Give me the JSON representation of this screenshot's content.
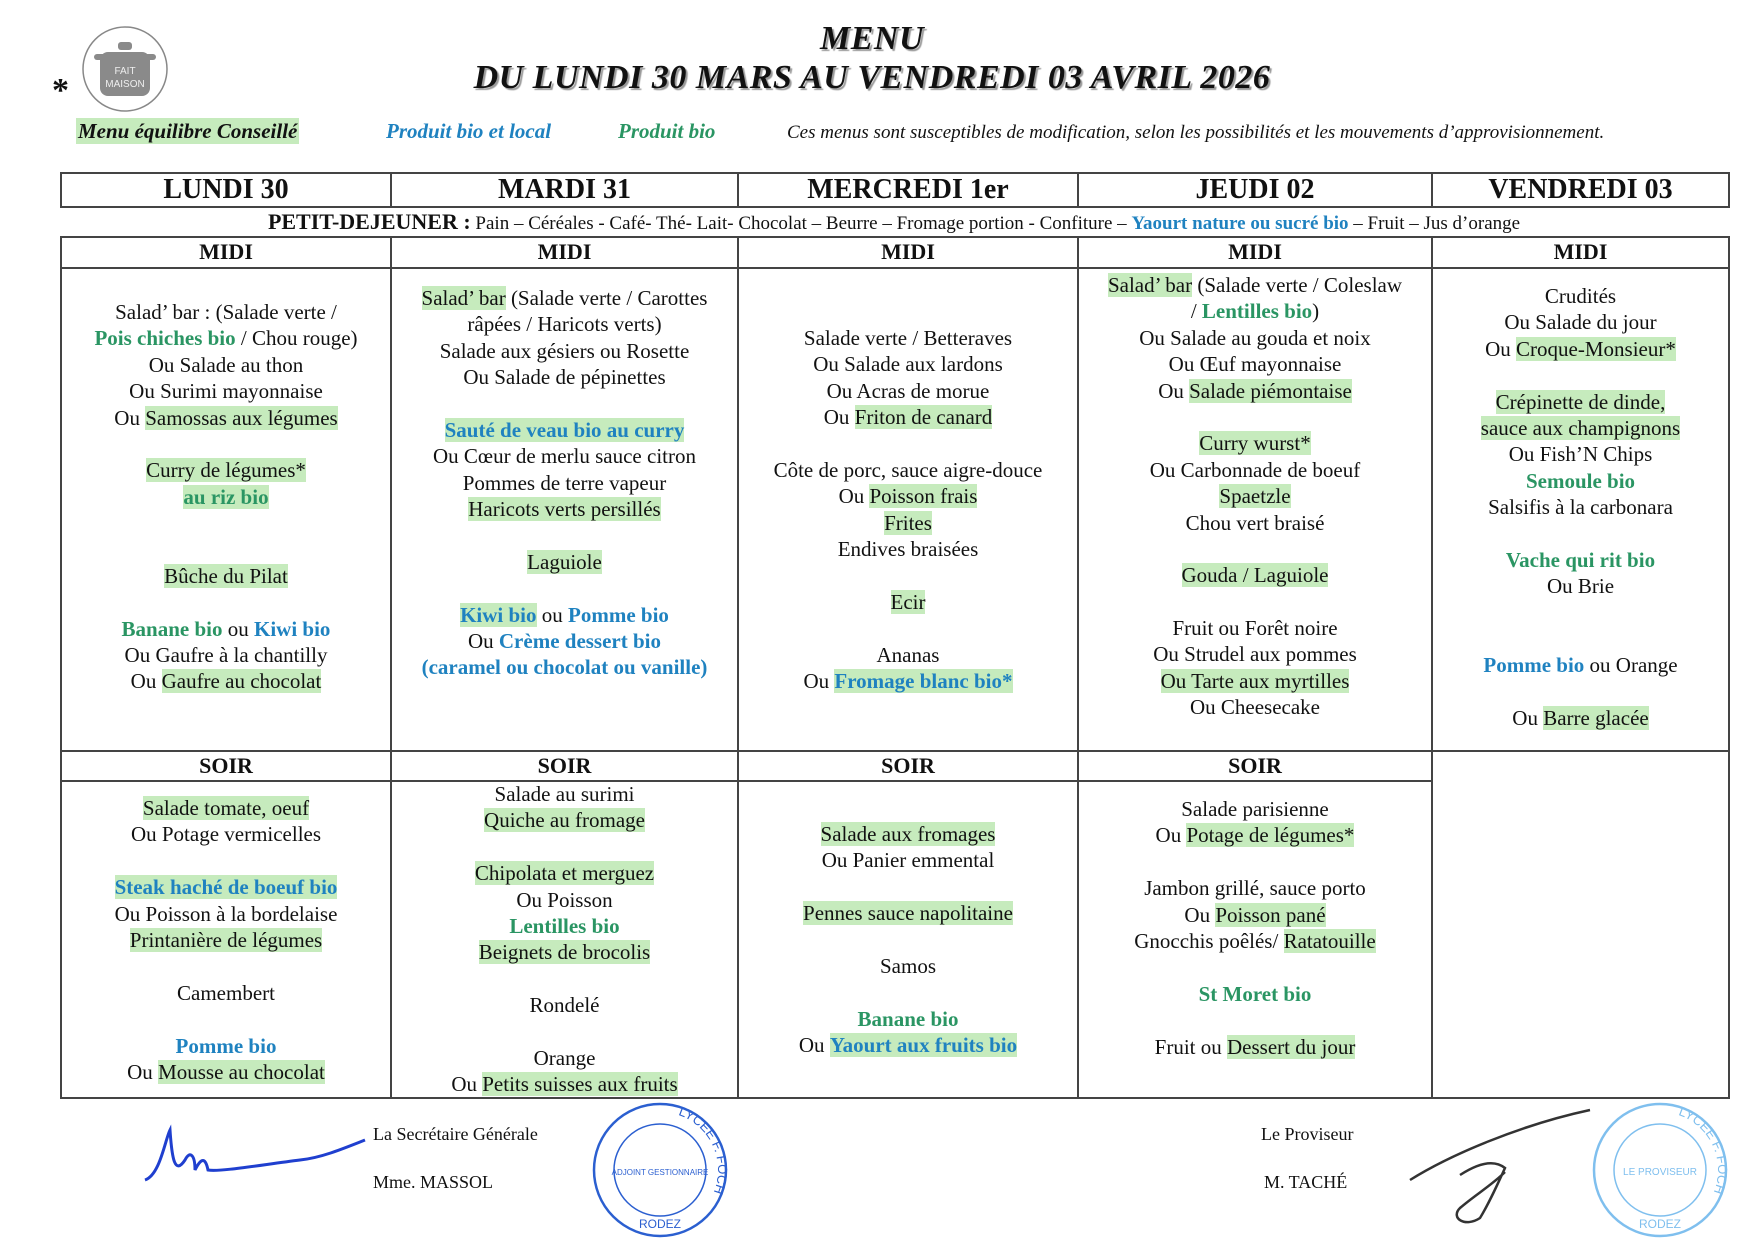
{
  "header": {
    "title": "MENU",
    "subtitle": "DU LUNDI 30 MARS AU VENDREDI 03 AVRIL 2026",
    "asterisk": "*",
    "logo_text": [
      "FAIT",
      "MAISON"
    ]
  },
  "legend": {
    "balanced": "Menu équilibre Conseillé",
    "bio_local": "Produit bio et local",
    "bio": "Produit bio",
    "note": "Ces menus sont susceptibles de modification, selon les possibilités et les mouvements d’approvisionnement."
  },
  "colors": {
    "bio_local": "#1f82c0",
    "bio": "#2a9563",
    "balanced_highlight": "#c6ebbd"
  },
  "days": [
    "LUNDI 30",
    "MARDI 31",
    "MERCREDI 1er",
    "JEUDI 02",
    "VENDREDI 03"
  ],
  "breakfast": {
    "label": "PETIT-DEJEUNER :",
    "items_before": " Pain – Céréales - Café- Thé- Lait- Chocolat – Beurre – Fromage portion - Confiture – ",
    "bio_local_item": "Yaourt nature ou sucré bio",
    "items_after": " – Fruit – Jus d’orange"
  },
  "section_labels": {
    "lunch": "MIDI",
    "dinner": "SOIR"
  },
  "lunch": [
    [
      [
        [
          "Salad’ bar : (Salade verte /",
          "n"
        ]
      ],
      [
        [
          "Pois chiches bio",
          "g"
        ],
        [
          " / Chou rouge)",
          "n"
        ]
      ],
      [
        [
          "Ou Salade au thon",
          "n"
        ]
      ],
      [
        [
          "Ou Surimi mayonnaise",
          "n"
        ]
      ],
      [
        [
          "Ou ",
          "n"
        ],
        [
          "Samossas aux légumes",
          "h"
        ]
      ],
      [],
      [
        [
          "Curry de légumes*",
          "h"
        ]
      ],
      [
        [
          "au riz bio",
          "hg"
        ]
      ],
      [],
      [],
      [
        [
          "Bûche du Pilat",
          "h"
        ]
      ],
      [],
      [
        [
          "Banane bio",
          "g"
        ],
        [
          " ou ",
          "n"
        ],
        [
          "Kiwi bio",
          "b"
        ]
      ],
      [
        [
          "Ou Gaufre à la chantilly",
          "n"
        ]
      ],
      [
        [
          "Ou ",
          "n"
        ],
        [
          "Gaufre au chocolat",
          "h"
        ]
      ]
    ],
    [
      [
        [
          "Salad’ bar",
          "h"
        ],
        [
          " (Salade verte / Carottes",
          "n"
        ]
      ],
      [
        [
          "râpées / Haricots verts)",
          "n"
        ]
      ],
      [
        [
          "Salade aux gésiers ou Rosette",
          "n"
        ]
      ],
      [
        [
          "Ou Salade de pépinettes",
          "n"
        ]
      ],
      [],
      [
        [
          "Sauté de veau bio au curry",
          "hb"
        ]
      ],
      [
        [
          "Ou Cœur de merlu sauce citron",
          "n"
        ]
      ],
      [
        [
          "Pommes de terre vapeur",
          "n"
        ]
      ],
      [
        [
          "Haricots verts persillés",
          "h"
        ]
      ],
      [],
      [
        [
          "Laguiole",
          "h"
        ]
      ],
      [],
      [
        [
          "Kiwi bio",
          "hb"
        ],
        [
          " ou ",
          "n"
        ],
        [
          "Pomme bio",
          "b"
        ]
      ],
      [
        [
          "Ou ",
          "n"
        ],
        [
          "Crème dessert bio",
          "b"
        ]
      ],
      [
        [
          "(caramel ou chocolat ou vanille)",
          "b"
        ]
      ]
    ],
    [
      [
        [
          "Salade verte / Betteraves",
          "n"
        ]
      ],
      [
        [
          "Ou Salade aux lardons",
          "n"
        ]
      ],
      [
        [
          "Ou Acras de morue",
          "n"
        ]
      ],
      [
        [
          "Ou ",
          "n"
        ],
        [
          "Friton de canard",
          "h"
        ]
      ],
      [],
      [
        [
          "Côte de porc, sauce aigre-douce",
          "n"
        ]
      ],
      [
        [
          "Ou ",
          "n"
        ],
        [
          "Poisson frais",
          "h"
        ]
      ],
      [
        [
          "Frites",
          "h"
        ]
      ],
      [
        [
          "Endives braisées",
          "n"
        ]
      ],
      [],
      [
        [
          "Ecir",
          "h"
        ]
      ],
      [],
      [
        [
          "Ananas",
          "n"
        ]
      ],
      [
        [
          "Ou ",
          "n"
        ],
        [
          "Fromage blanc bio*",
          "hb"
        ]
      ]
    ],
    [
      [
        [
          "Salad’ bar",
          "h"
        ],
        [
          " (Salade verte / Coleslaw",
          "n"
        ]
      ],
      [
        [
          "/ ",
          "n"
        ],
        [
          "Lentilles bio",
          "g"
        ],
        [
          ")",
          "n"
        ]
      ],
      [
        [
          "Ou Salade au gouda et noix",
          "n"
        ]
      ],
      [
        [
          "Ou Œuf mayonnaise",
          "n"
        ]
      ],
      [
        [
          "Ou ",
          "n"
        ],
        [
          "Salade piémontaise",
          "h"
        ]
      ],
      [],
      [
        [
          "Curry wurst*",
          "h"
        ]
      ],
      [
        [
          "Ou Carbonnade de boeuf",
          "n"
        ]
      ],
      [
        [
          "Spaetzle",
          "h"
        ]
      ],
      [
        [
          "Chou vert braisé",
          "n"
        ]
      ],
      [],
      [
        [
          "Gouda / Laguiole",
          "h"
        ]
      ],
      [],
      [
        [
          "Fruit ou Forêt noire",
          "n"
        ]
      ],
      [
        [
          "Ou Strudel aux pommes",
          "n"
        ]
      ],
      [
        [
          "Ou Tarte aux myrtilles",
          "h"
        ]
      ],
      [
        [
          "Ou Cheesecake",
          "n"
        ]
      ]
    ],
    [
      [
        [
          "Crudités",
          "n"
        ]
      ],
      [
        [
          "Ou Salade du jour",
          "n"
        ]
      ],
      [
        [
          "Ou ",
          "n"
        ],
        [
          "Croque-Monsieur*",
          "h"
        ]
      ],
      [],
      [
        [
          "Crépinette de dinde,",
          "h"
        ]
      ],
      [
        [
          "sauce aux champignons",
          "h"
        ]
      ],
      [
        [
          "Ou Fish’N Chips",
          "n"
        ]
      ],
      [
        [
          "Semoule bio",
          "g"
        ]
      ],
      [
        [
          "Salsifis à la carbonara",
          "n"
        ]
      ],
      [],
      [
        [
          "Vache qui rit bio",
          "g"
        ]
      ],
      [
        [
          "Ou Brie",
          "n"
        ]
      ],
      [],
      [],
      [
        [
          "Pomme bio",
          "b"
        ],
        [
          " ou Orange",
          "n"
        ]
      ],
      [],
      [
        [
          "Ou ",
          "n"
        ],
        [
          "Barre glacée",
          "h"
        ]
      ]
    ]
  ],
  "dinner": [
    [
      [
        [
          "Salade tomate, oeuf",
          "h"
        ]
      ],
      [
        [
          "Ou Potage vermicelles",
          "n"
        ]
      ],
      [],
      [
        [
          "Steak haché de boeuf bio",
          "hb"
        ]
      ],
      [
        [
          "Ou Poisson à la bordelaise",
          "n"
        ]
      ],
      [
        [
          "Printanière de légumes",
          "h"
        ]
      ],
      [],
      [
        [
          "Camembert",
          "n"
        ]
      ],
      [],
      [
        [
          "Pomme bio",
          "b"
        ]
      ],
      [
        [
          "Ou ",
          "n"
        ],
        [
          "Mousse au chocolat",
          "h"
        ]
      ]
    ],
    [
      [
        [
          "Salade au surimi",
          "n"
        ]
      ],
      [
        [
          "Quiche au fromage",
          "h"
        ]
      ],
      [],
      [
        [
          "Chipolata et merguez",
          "h"
        ]
      ],
      [
        [
          "Ou Poisson",
          "n"
        ]
      ],
      [
        [
          "Lentilles bio",
          "g"
        ]
      ],
      [
        [
          "Beignets de brocolis",
          "h"
        ]
      ],
      [],
      [
        [
          "Rondelé",
          "n"
        ]
      ],
      [],
      [
        [
          "Orange",
          "n"
        ]
      ],
      [
        [
          "Ou ",
          "n"
        ],
        [
          "Petits suisses aux fruits",
          "h"
        ]
      ]
    ],
    [
      [
        [
          "Salade aux fromages",
          "h"
        ]
      ],
      [
        [
          "Ou Panier emmental",
          "n"
        ]
      ],
      [],
      [
        [
          "Pennes sauce napolitaine",
          "h"
        ]
      ],
      [],
      [
        [
          "Samos",
          "n"
        ]
      ],
      [],
      [
        [
          "Banane bio",
          "g"
        ]
      ],
      [
        [
          "Ou ",
          "n"
        ],
        [
          "Yaourt aux fruits bio",
          "hb"
        ]
      ]
    ],
    [
      [
        [
          "Salade parisienne",
          "n"
        ]
      ],
      [
        [
          "Ou ",
          "n"
        ],
        [
          "Potage de légumes*",
          "h"
        ]
      ],
      [],
      [
        [
          "Jambon grillé, sauce porto",
          "n"
        ]
      ],
      [
        [
          "Ou ",
          "n"
        ],
        [
          "Poisson pané",
          "h"
        ]
      ],
      [
        [
          "Gnocchis poêlés/ ",
          "n"
        ],
        [
          "Ratatouille",
          "h"
        ]
      ],
      [],
      [
        [
          "St Moret bio",
          "g"
        ]
      ],
      [],
      [
        [
          "Fruit ou ",
          "n"
        ],
        [
          "Dessert du jour",
          "h"
        ]
      ]
    ]
  ],
  "signatures": {
    "left_title": "La Secrétaire Générale",
    "left_name": "Mme. MASSOL",
    "right_title": "Le Proviseur",
    "right_name": "M. TACHÉ",
    "left_stamp_text": [
      "LYCEE F. FOCH",
      "ADJOINT GESTIONNAIRE",
      "RODEZ"
    ],
    "right_stamp_text": [
      "LYCEE F. FOCH",
      "LE PROVISEUR",
      "RODEZ"
    ]
  }
}
